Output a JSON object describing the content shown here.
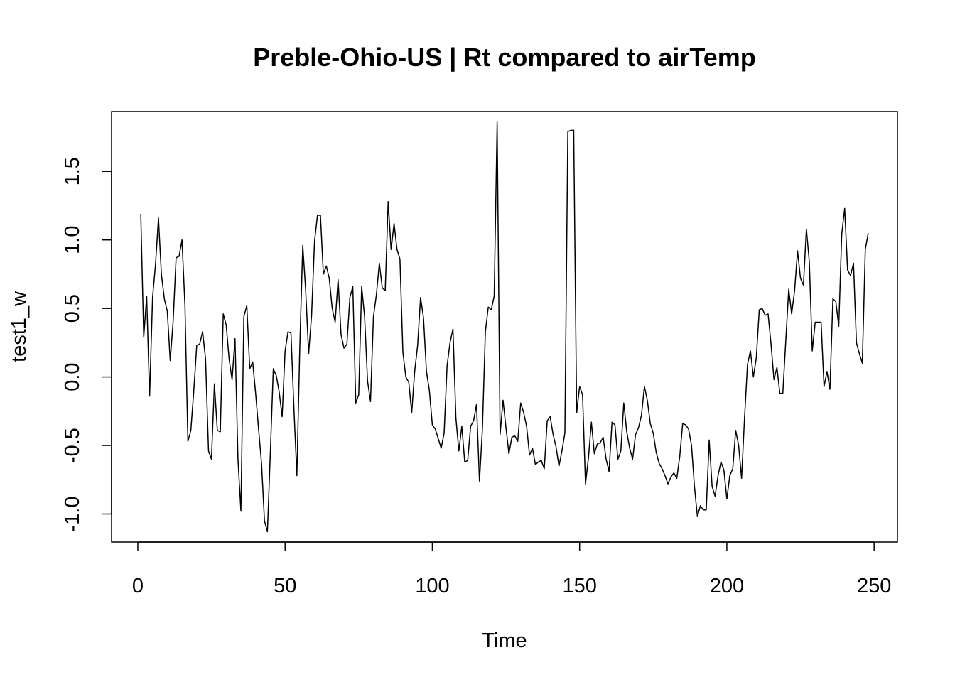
{
  "chart_data": {
    "type": "line",
    "title": "Preble-Ohio-US | Rt compared to airTemp",
    "xlabel": "Time",
    "ylabel": "test1_w",
    "xlim": [
      -8.92,
      257.92
    ],
    "ylim": [
      -1.2048,
      1.9368
    ],
    "x_ticks": [
      0,
      50,
      100,
      150,
      200,
      250
    ],
    "x_tick_labels": [
      "0",
      "50",
      "100",
      "150",
      "200",
      "250"
    ],
    "y_ticks": [
      -1.0,
      -0.5,
      0.0,
      0.5,
      1.0,
      1.5
    ],
    "y_tick_labels": [
      "-1.0",
      "-0.5",
      "0.0",
      "0.5",
      "1.0",
      "1.5"
    ],
    "grid": false,
    "legend": "none",
    "line_color": "#000000",
    "series": [
      {
        "x_start": 1,
        "values": [
          1.19,
          0.29,
          0.59,
          -0.14,
          0.58,
          0.82,
          1.16,
          0.75,
          0.57,
          0.48,
          0.12,
          0.41,
          0.87,
          0.88,
          1.0,
          0.52,
          -0.47,
          -0.39,
          -0.1,
          0.23,
          0.24,
          0.33,
          0.13,
          -0.54,
          -0.6,
          -0.05,
          -0.39,
          -0.4,
          0.46,
          0.38,
          0.13,
          -0.02,
          0.28,
          -0.6,
          -0.98,
          0.44,
          0.52,
          0.06,
          0.11,
          -0.12,
          -0.38,
          -0.63,
          -1.05,
          -1.13,
          -0.55,
          0.06,
          0.01,
          -0.11,
          -0.29,
          0.19,
          0.33,
          0.32,
          -0.23,
          -0.72,
          0.22,
          0.96,
          0.63,
          0.17,
          0.45,
          0.99,
          1.18,
          1.18,
          0.75,
          0.81,
          0.72,
          0.5,
          0.4,
          0.71,
          0.31,
          0.21,
          0.24,
          0.58,
          0.66,
          -0.19,
          -0.13,
          0.66,
          0.44,
          -0.03,
          -0.18,
          0.44,
          0.6,
          0.83,
          0.65,
          0.63,
          1.28,
          0.93,
          1.12,
          0.93,
          0.86,
          0.18,
          0.0,
          -0.04,
          -0.26,
          0.04,
          0.23,
          0.58,
          0.43,
          0.04,
          -0.1,
          -0.35,
          -0.38,
          -0.45,
          -0.52,
          -0.41,
          0.08,
          0.25,
          0.35,
          -0.3,
          -0.54,
          -0.36,
          -0.62,
          -0.61,
          -0.36,
          -0.32,
          -0.2,
          -0.76,
          -0.38,
          0.33,
          0.51,
          0.49,
          0.59,
          1.86,
          -0.42,
          -0.17,
          -0.37,
          -0.56,
          -0.44,
          -0.43,
          -0.47,
          -0.19,
          -0.26,
          -0.36,
          -0.57,
          -0.52,
          -0.64,
          -0.62,
          -0.61,
          -0.67,
          -0.32,
          -0.29,
          -0.42,
          -0.51,
          -0.65,
          -0.54,
          -0.41,
          1.79,
          1.8,
          1.8,
          -0.26,
          -0.07,
          -0.13,
          -0.78,
          -0.59,
          -0.33,
          -0.56,
          -0.49,
          -0.48,
          -0.44,
          -0.6,
          -0.69,
          -0.33,
          -0.35,
          -0.6,
          -0.54,
          -0.19,
          -0.4,
          -0.52,
          -0.6,
          -0.42,
          -0.37,
          -0.28,
          -0.07,
          -0.17,
          -0.34,
          -0.41,
          -0.55,
          -0.63,
          -0.67,
          -0.72,
          -0.78,
          -0.73,
          -0.7,
          -0.74,
          -0.58,
          -0.34,
          -0.35,
          -0.38,
          -0.5,
          -0.8,
          -1.02,
          -0.94,
          -0.97,
          -0.97,
          -0.46,
          -0.8,
          -0.87,
          -0.72,
          -0.62,
          -0.68,
          -0.89,
          -0.72,
          -0.67,
          -0.39,
          -0.5,
          -0.74,
          -0.3,
          0.09,
          0.19,
          0.0,
          0.14,
          0.49,
          0.5,
          0.45,
          0.46,
          0.24,
          -0.02,
          0.07,
          -0.12,
          -0.12,
          0.26,
          0.64,
          0.46,
          0.63,
          0.92,
          0.72,
          0.67,
          1.08,
          0.84,
          0.19,
          0.4,
          0.4,
          0.4,
          -0.07,
          0.04,
          -0.09,
          0.57,
          0.55,
          0.37,
          1.04,
          1.23,
          0.78,
          0.74,
          0.83,
          0.25,
          0.17,
          0.1,
          0.93,
          1.05
        ]
      }
    ]
  }
}
